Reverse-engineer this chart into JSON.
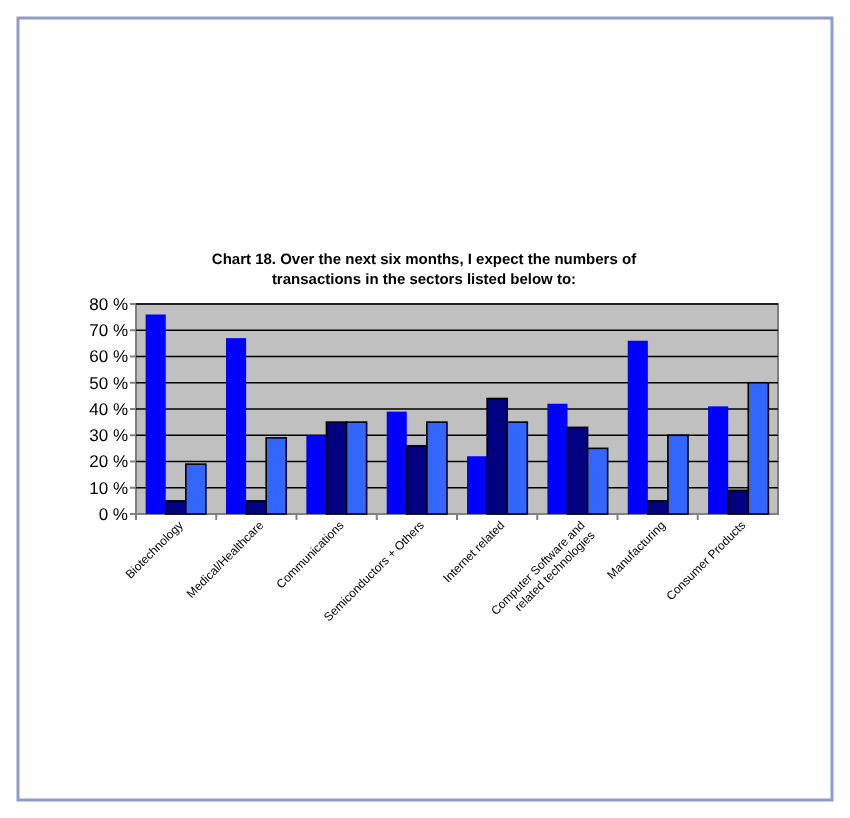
{
  "chart_data": {
    "type": "bar",
    "title": "Chart 18. Over the next six months, I expect the numbers of transactions in the sectors listed below to:",
    "categories": [
      "Biotechnology",
      "Medical/Healthcare",
      "Communications",
      "Semiconductors + Others",
      "Internet related",
      "Computer Software and related technologies",
      "Manufacturing",
      "Consumer Products"
    ],
    "series": [
      {
        "color": "#0000ff",
        "values": [
          76,
          67,
          30,
          39,
          22,
          42,
          66,
          41
        ]
      },
      {
        "color": "#000080",
        "values": [
          5,
          5,
          35,
          26,
          44,
          33,
          5,
          9
        ]
      },
      {
        "color": "#3366ff",
        "values": [
          19,
          29,
          35,
          35,
          35,
          25,
          30,
          50
        ]
      }
    ],
    "ylim": [
      0,
      80
    ],
    "yticks": [
      {
        "value": 0,
        "label": "0 %"
      },
      {
        "value": 10,
        "label": "10 %"
      },
      {
        "value": 20,
        "label": "20 %"
      },
      {
        "value": 30,
        "label": "30 %"
      },
      {
        "value": 40,
        "label": "40 %"
      },
      {
        "value": 50,
        "label": "50 %"
      },
      {
        "value": 60,
        "label": "60 %"
      },
      {
        "value": 70,
        "label": "70 %"
      },
      {
        "value": 80,
        "label": "80 %"
      }
    ],
    "grid": "y"
  }
}
